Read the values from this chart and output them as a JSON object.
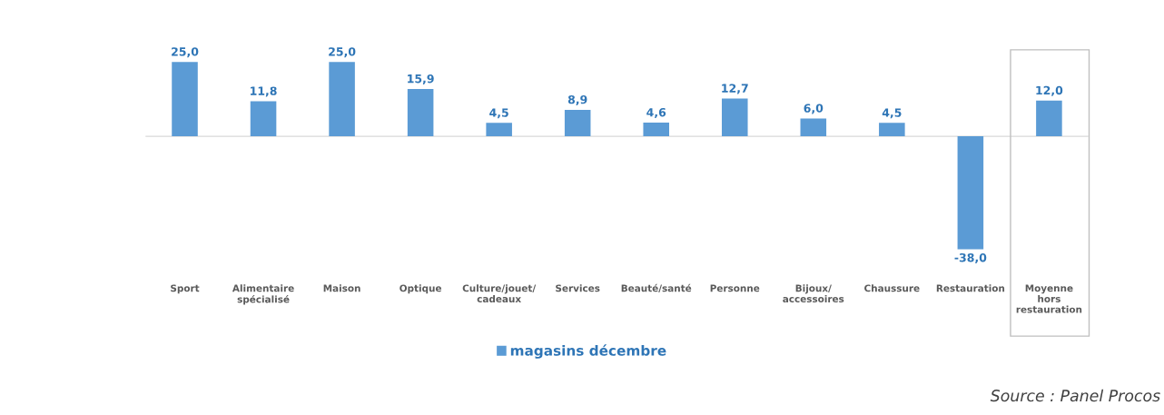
{
  "chart_data": {
    "type": "bar",
    "categories": [
      "Sport",
      "Alimentaire\nspécialisé",
      "Maison",
      "Optique",
      "Culture/jouet/\ncadeaux",
      "Services",
      "Beauté/santé",
      "Personne",
      "Bijoux/\naccessoires",
      "Chaussure",
      "Restauration",
      "Moyenne\nhors\nrestauration"
    ],
    "series": [
      {
        "name": "magasins décembre",
        "color": "#5b9bd5",
        "values": [
          25.0,
          11.8,
          25.0,
          15.9,
          4.5,
          8.9,
          4.6,
          12.7,
          6.0,
          4.5,
          -38.0,
          12.0
        ],
        "value_labels": [
          "25,0",
          "11,8",
          "25,0",
          "15,9",
          "4,5",
          "8,9",
          "4,6",
          "12,7",
          "6,0",
          "4,5",
          "-38,0",
          "12,0"
        ]
      }
    ],
    "legend": "bottom",
    "grid": false,
    "annotations": [
      "Source : Panel Procos"
    ]
  }
}
